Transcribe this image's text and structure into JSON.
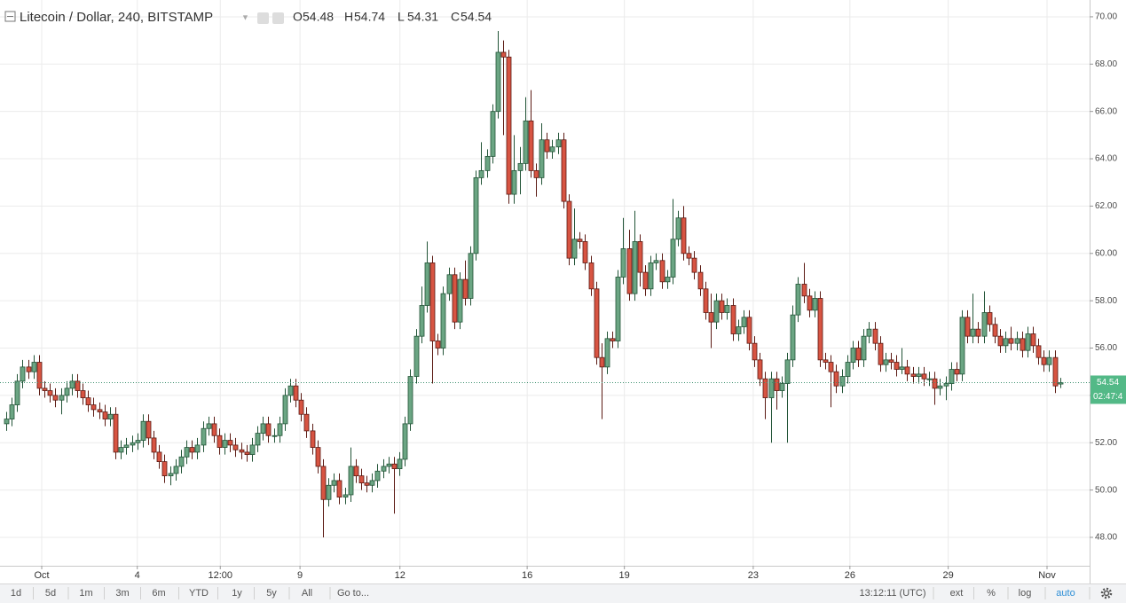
{
  "chart_data": {
    "type": "candlestick",
    "title": "Litecoin / Dollar, 240, BITSTAMP",
    "ohlc_labels": [
      "O",
      "H",
      "L",
      "C"
    ],
    "ohlc": [
      [
        52.8,
        53.3,
        52.5,
        53.0
      ],
      [
        53.0,
        53.9,
        52.7,
        53.6
      ],
      [
        53.6,
        54.9,
        53.3,
        54.6
      ],
      [
        54.6,
        55.5,
        54.3,
        55.2
      ],
      [
        55.2,
        55.5,
        54.7,
        55.0
      ],
      [
        55.0,
        55.7,
        54.7,
        55.4
      ],
      [
        55.4,
        55.7,
        54.0,
        54.3
      ],
      [
        54.3,
        54.6,
        53.9,
        54.2
      ],
      [
        54.2,
        54.5,
        53.7,
        54.0
      ],
      [
        54.0,
        54.3,
        53.5,
        53.8
      ],
      [
        53.8,
        54.3,
        53.2,
        54.0
      ],
      [
        54.0,
        54.6,
        53.7,
        54.3
      ],
      [
        54.3,
        54.9,
        54.0,
        54.6
      ],
      [
        54.6,
        54.9,
        53.9,
        54.2
      ],
      [
        54.2,
        54.5,
        53.6,
        53.9
      ],
      [
        53.9,
        54.2,
        53.3,
        53.6
      ],
      [
        53.6,
        53.9,
        53.1,
        53.4
      ],
      [
        53.4,
        53.7,
        53.0,
        53.3
      ],
      [
        53.3,
        53.6,
        52.7,
        53.0
      ],
      [
        53.0,
        53.5,
        52.7,
        53.2
      ],
      [
        53.2,
        53.5,
        51.3,
        51.6
      ],
      [
        51.6,
        52.1,
        51.3,
        51.8
      ],
      [
        51.8,
        52.2,
        51.5,
        51.9
      ],
      [
        51.9,
        52.3,
        51.6,
        52.0
      ],
      [
        52.0,
        52.4,
        51.7,
        52.1
      ],
      [
        52.1,
        53.2,
        51.8,
        52.9
      ],
      [
        52.9,
        53.2,
        51.9,
        52.2
      ],
      [
        52.2,
        52.5,
        51.3,
        51.6
      ],
      [
        51.6,
        51.9,
        50.9,
        51.2
      ],
      [
        51.2,
        51.5,
        50.3,
        50.6
      ],
      [
        50.6,
        51.0,
        50.2,
        50.7
      ],
      [
        50.7,
        51.3,
        50.4,
        51.0
      ],
      [
        51.0,
        51.7,
        50.7,
        51.4
      ],
      [
        51.4,
        52.1,
        51.1,
        51.8
      ],
      [
        51.8,
        52.1,
        51.3,
        51.6
      ],
      [
        51.6,
        52.2,
        51.3,
        51.9
      ],
      [
        51.9,
        52.9,
        51.6,
        52.6
      ],
      [
        52.6,
        53.1,
        52.3,
        52.8
      ],
      [
        52.8,
        53.1,
        52.0,
        52.3
      ],
      [
        52.3,
        52.6,
        51.5,
        51.8
      ],
      [
        51.8,
        52.4,
        51.5,
        52.1
      ],
      [
        52.1,
        52.4,
        51.6,
        51.9
      ],
      [
        51.9,
        52.2,
        51.4,
        51.7
      ],
      [
        51.7,
        52.0,
        51.3,
        51.6
      ],
      [
        51.6,
        51.9,
        51.2,
        51.5
      ],
      [
        51.5,
        52.2,
        51.2,
        51.9
      ],
      [
        51.9,
        52.7,
        51.6,
        52.4
      ],
      [
        52.4,
        53.1,
        52.1,
        52.8
      ],
      [
        52.8,
        53.1,
        52.0,
        52.3
      ],
      [
        52.3,
        52.6,
        52.0,
        52.3
      ],
      [
        52.3,
        53.1,
        52.0,
        52.8
      ],
      [
        52.8,
        54.3,
        52.5,
        54.0
      ],
      [
        54.0,
        54.7,
        53.7,
        54.4
      ],
      [
        54.4,
        54.7,
        53.5,
        53.8
      ],
      [
        53.8,
        54.1,
        52.9,
        53.2
      ],
      [
        53.2,
        53.5,
        52.2,
        52.5
      ],
      [
        52.5,
        52.8,
        51.5,
        51.8
      ],
      [
        51.8,
        52.1,
        50.7,
        51.0
      ],
      [
        51.0,
        51.3,
        48.0,
        49.6
      ],
      [
        49.6,
        50.5,
        49.3,
        50.2
      ],
      [
        50.2,
        50.7,
        49.9,
        50.4
      ],
      [
        50.4,
        50.7,
        49.4,
        49.7
      ],
      [
        49.7,
        50.1,
        49.4,
        49.8
      ],
      [
        49.8,
        51.8,
        49.5,
        51.0
      ],
      [
        51.0,
        51.3,
        50.3,
        50.6
      ],
      [
        50.6,
        50.9,
        50.0,
        50.3
      ],
      [
        50.3,
        50.6,
        49.9,
        50.2
      ],
      [
        50.2,
        50.7,
        49.9,
        50.4
      ],
      [
        50.4,
        51.1,
        50.1,
        50.8
      ],
      [
        50.8,
        51.3,
        50.5,
        51.0
      ],
      [
        51.0,
        51.4,
        50.7,
        51.1
      ],
      [
        51.1,
        51.4,
        49.0,
        50.9
      ],
      [
        50.9,
        51.6,
        50.6,
        51.3
      ],
      [
        51.3,
        53.1,
        51.0,
        52.8
      ],
      [
        52.8,
        55.1,
        52.5,
        54.8
      ],
      [
        54.8,
        56.8,
        54.5,
        56.5
      ],
      [
        56.5,
        58.6,
        56.2,
        57.8
      ],
      [
        57.8,
        60.5,
        57.5,
        59.6
      ],
      [
        59.6,
        59.9,
        54.5,
        56.3
      ],
      [
        56.3,
        56.6,
        55.7,
        56.0
      ],
      [
        56.0,
        58.6,
        55.7,
        58.3
      ],
      [
        58.3,
        59.4,
        58.0,
        59.1
      ],
      [
        59.1,
        59.4,
        56.8,
        57.1
      ],
      [
        57.1,
        59.2,
        56.8,
        58.9
      ],
      [
        58.9,
        59.7,
        57.8,
        58.1
      ],
      [
        58.1,
        60.3,
        57.8,
        60.0
      ],
      [
        60.0,
        63.5,
        59.7,
        63.2
      ],
      [
        63.2,
        64.7,
        62.9,
        63.5
      ],
      [
        63.5,
        64.4,
        63.2,
        64.1
      ],
      [
        64.1,
        66.3,
        63.8,
        66.0
      ],
      [
        66.0,
        69.4,
        65.7,
        68.5
      ],
      [
        68.5,
        69.0,
        65.0,
        68.3
      ],
      [
        68.3,
        68.6,
        62.1,
        62.5
      ],
      [
        62.5,
        65.0,
        62.1,
        63.5
      ],
      [
        63.5,
        64.5,
        62.5,
        63.8
      ],
      [
        63.8,
        66.6,
        63.5,
        65.6
      ],
      [
        65.6,
        66.9,
        63.2,
        63.5
      ],
      [
        63.5,
        63.8,
        62.4,
        63.2
      ],
      [
        63.2,
        65.5,
        62.9,
        64.8
      ],
      [
        64.8,
        65.1,
        64.0,
        64.3
      ],
      [
        64.3,
        64.8,
        64.0,
        64.5
      ],
      [
        64.5,
        65.1,
        64.2,
        64.8
      ],
      [
        64.8,
        65.1,
        61.9,
        62.2
      ],
      [
        62.2,
        62.5,
        59.5,
        59.8
      ],
      [
        59.8,
        61.9,
        59.5,
        60.6
      ],
      [
        60.6,
        60.9,
        60.2,
        60.5
      ],
      [
        60.5,
        60.8,
        59.3,
        59.6
      ],
      [
        59.6,
        59.9,
        58.2,
        58.5
      ],
      [
        58.5,
        58.8,
        55.3,
        55.6
      ],
      [
        55.6,
        56.2,
        53.0,
        55.2
      ],
      [
        55.2,
        56.7,
        54.9,
        56.4
      ],
      [
        56.4,
        56.7,
        56.0,
        56.3
      ],
      [
        56.3,
        59.3,
        56.0,
        59.0
      ],
      [
        59.0,
        61.5,
        58.7,
        60.2
      ],
      [
        60.2,
        61.0,
        58.0,
        58.3
      ],
      [
        58.3,
        61.8,
        58.0,
        60.5
      ],
      [
        60.5,
        60.8,
        58.6,
        59.2
      ],
      [
        59.2,
        59.5,
        58.2,
        58.5
      ],
      [
        58.5,
        59.9,
        58.2,
        59.6
      ],
      [
        59.6,
        60.0,
        59.3,
        59.7
      ],
      [
        59.7,
        60.0,
        58.5,
        58.8
      ],
      [
        58.8,
        59.3,
        58.5,
        59.0
      ],
      [
        59.0,
        62.3,
        58.7,
        60.6
      ],
      [
        60.6,
        61.8,
        60.3,
        61.5
      ],
      [
        61.5,
        62.0,
        59.7,
        60.0
      ],
      [
        60.0,
        60.3,
        59.5,
        59.8
      ],
      [
        59.8,
        60.1,
        58.9,
        59.2
      ],
      [
        59.2,
        59.5,
        58.2,
        58.5
      ],
      [
        58.5,
        58.8,
        57.2,
        57.5
      ],
      [
        57.5,
        58.3,
        56.0,
        57.1
      ],
      [
        57.1,
        58.3,
        56.8,
        58.0
      ],
      [
        58.0,
        58.3,
        57.2,
        57.5
      ],
      [
        57.5,
        58.1,
        57.2,
        57.8
      ],
      [
        57.8,
        58.1,
        56.3,
        56.6
      ],
      [
        56.6,
        57.2,
        56.3,
        56.9
      ],
      [
        56.9,
        57.6,
        56.6,
        57.3
      ],
      [
        57.3,
        57.6,
        55.9,
        56.2
      ],
      [
        56.2,
        56.5,
        55.2,
        55.5
      ],
      [
        55.5,
        55.8,
        54.4,
        54.7
      ],
      [
        54.7,
        55.0,
        53.0,
        53.9
      ],
      [
        53.9,
        55.0,
        52.0,
        54.7
      ],
      [
        54.7,
        55.0,
        53.4,
        54.2
      ],
      [
        54.2,
        54.8,
        53.9,
        54.5
      ],
      [
        54.5,
        55.8,
        52.0,
        55.5
      ],
      [
        55.5,
        57.8,
        55.2,
        57.4
      ],
      [
        57.4,
        59.0,
        57.1,
        58.7
      ],
      [
        58.7,
        59.6,
        57.9,
        58.2
      ],
      [
        58.2,
        58.5,
        57.3,
        57.6
      ],
      [
        57.6,
        58.4,
        57.3,
        58.1
      ],
      [
        58.1,
        58.4,
        55.2,
        55.5
      ],
      [
        55.5,
        55.8,
        55.1,
        55.4
      ],
      [
        55.4,
        55.7,
        53.5,
        55.0
      ],
      [
        55.0,
        55.3,
        54.1,
        54.4
      ],
      [
        54.4,
        55.1,
        54.1,
        54.8
      ],
      [
        54.8,
        55.7,
        54.5,
        55.4
      ],
      [
        55.4,
        56.3,
        55.1,
        56.0
      ],
      [
        56.0,
        56.3,
        55.2,
        55.5
      ],
      [
        55.5,
        56.8,
        55.2,
        56.5
      ],
      [
        56.5,
        57.1,
        56.2,
        56.8
      ],
      [
        56.8,
        57.1,
        55.9,
        56.2
      ],
      [
        56.2,
        56.5,
        55.0,
        55.3
      ],
      [
        55.3,
        55.8,
        55.0,
        55.5
      ],
      [
        55.5,
        55.8,
        55.1,
        55.4
      ],
      [
        55.4,
        55.7,
        54.8,
        55.1
      ],
      [
        55.1,
        56.0,
        54.9,
        55.2
      ],
      [
        55.2,
        55.5,
        54.6,
        54.9
      ],
      [
        54.9,
        55.2,
        54.5,
        54.8
      ],
      [
        54.8,
        55.2,
        54.5,
        54.9
      ],
      [
        54.9,
        55.2,
        54.4,
        54.7
      ],
      [
        54.7,
        55.0,
        54.4,
        54.7
      ],
      [
        54.7,
        55.0,
        53.6,
        54.3
      ],
      [
        54.3,
        54.7,
        54.0,
        54.4
      ],
      [
        54.4,
        54.8,
        53.8,
        54.5
      ],
      [
        54.5,
        55.4,
        54.2,
        55.1
      ],
      [
        55.1,
        55.4,
        54.6,
        54.9
      ],
      [
        54.9,
        57.6,
        54.6,
        57.3
      ],
      [
        57.3,
        57.6,
        56.2,
        56.5
      ],
      [
        56.5,
        58.3,
        56.2,
        56.8
      ],
      [
        56.8,
        57.1,
        56.2,
        56.5
      ],
      [
        56.5,
        58.4,
        56.2,
        57.5
      ],
      [
        57.5,
        57.8,
        56.7,
        57.0
      ],
      [
        57.0,
        57.3,
        56.2,
        56.5
      ],
      [
        56.5,
        56.8,
        55.8,
        56.1
      ],
      [
        56.1,
        56.7,
        55.8,
        56.4
      ],
      [
        56.4,
        56.9,
        55.9,
        56.2
      ],
      [
        56.2,
        56.7,
        55.9,
        56.4
      ],
      [
        56.4,
        56.7,
        55.6,
        55.9
      ],
      [
        55.9,
        56.9,
        55.6,
        56.6
      ],
      [
        56.6,
        56.9,
        55.8,
        56.1
      ],
      [
        56.1,
        56.4,
        55.3,
        55.6
      ],
      [
        55.6,
        55.9,
        55.0,
        55.3
      ],
      [
        55.3,
        55.9,
        55.0,
        55.6
      ],
      [
        55.6,
        55.9,
        54.1,
        54.4
      ],
      [
        54.48,
        54.74,
        54.31,
        54.54
      ]
    ],
    "up_color": "#6ba583",
    "down_color": "#d75442",
    "xlim": [
      -1.14,
      198.4
    ],
    "xticks": [
      {
        "value": 6.5,
        "label": "Oct"
      },
      {
        "value": 24.0,
        "label": "4"
      },
      {
        "value": 39.2,
        "label": "12:00"
      },
      {
        "value": 53.8,
        "label": "9"
      },
      {
        "value": 72.1,
        "label": "12"
      },
      {
        "value": 95.4,
        "label": "16"
      },
      {
        "value": 113.2,
        "label": "19"
      },
      {
        "value": 136.8,
        "label": "23"
      },
      {
        "value": 154.5,
        "label": "26"
      },
      {
        "value": 172.5,
        "label": "29"
      },
      {
        "value": 190.6,
        "label": "Nov"
      }
    ],
    "ylim": [
      46.8,
      70.71
    ],
    "yticks": [
      {
        "value": 48,
        "label": "48.00"
      },
      {
        "value": 50,
        "label": "50.00"
      },
      {
        "value": 52,
        "label": "52.00"
      },
      {
        "value": 54,
        "label": "54.00"
      },
      {
        "value": 56,
        "label": "56.00"
      },
      {
        "value": 58,
        "label": "58.00"
      },
      {
        "value": 60,
        "label": "60.00"
      },
      {
        "value": 62,
        "label": "62.00"
      },
      {
        "value": 64,
        "label": "64.00"
      },
      {
        "value": 66,
        "label": "66.00"
      },
      {
        "value": 68,
        "label": "68.00"
      },
      {
        "value": 70,
        "label": "70.00"
      }
    ],
    "grid": true,
    "countdown": "02:47:4"
  },
  "toolbar": {
    "left": [
      "1d",
      "5d",
      "1m",
      "3m",
      "6m",
      "YTD",
      "1y",
      "5y",
      "All",
      "Go to..."
    ],
    "right": [
      "13:12:11 (UTC)",
      "ext",
      "%",
      "log",
      "auto"
    ]
  }
}
